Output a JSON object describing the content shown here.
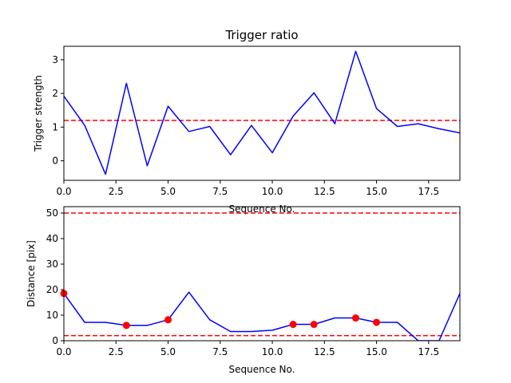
{
  "figure": {
    "background": "#ffffff"
  },
  "colors": {
    "series": "#0000ff",
    "threshold": "#ff0000",
    "marker": "#ff0000",
    "axes": "#000000"
  },
  "chart_data": [
    {
      "type": "line",
      "title": "Trigger ratio",
      "xlabel": "Sequence No.",
      "ylabel": "Trigger strength",
      "xlim": [
        0,
        19
      ],
      "ylim": [
        -0.58,
        3.4
      ],
      "xticks": [
        0,
        2.5,
        5,
        7.5,
        10,
        12.5,
        15,
        17.5
      ],
      "xtick_labels": [
        "0.0",
        "2.5",
        "5.0",
        "7.5",
        "10.0",
        "12.5",
        "15.0",
        "17.5"
      ],
      "yticks": [
        0,
        1,
        2,
        3
      ],
      "ytick_labels": [
        "0",
        "1",
        "2",
        "3"
      ],
      "grid": false,
      "series": [
        {
          "name": "Trigger strength",
          "x": [
            0,
            1,
            2,
            3,
            4,
            5,
            6,
            7,
            8,
            9,
            10,
            11,
            12,
            13,
            14,
            15,
            16,
            17,
            18,
            19
          ],
          "values": [
            1.92,
            1.05,
            -0.4,
            2.3,
            -0.15,
            1.62,
            0.87,
            1.02,
            0.18,
            1.05,
            0.24,
            1.33,
            2.02,
            1.1,
            3.25,
            1.55,
            1.02,
            1.1,
            0.95,
            0.83
          ]
        }
      ],
      "hlines": [
        {
          "y": 1.2,
          "style": "dashed"
        }
      ]
    },
    {
      "type": "line",
      "title": "",
      "xlabel": "Sequence No.",
      "ylabel": "Distance [pix]",
      "xlim": [
        0,
        19
      ],
      "ylim": [
        0,
        52.5
      ],
      "xticks": [
        0,
        2.5,
        5,
        7.5,
        10,
        12.5,
        15,
        17.5
      ],
      "xtick_labels": [
        "0.0",
        "2.5",
        "5.0",
        "7.5",
        "10.0",
        "12.5",
        "15.0",
        "17.5"
      ],
      "yticks": [
        0,
        10,
        20,
        30,
        40,
        50
      ],
      "ytick_labels": [
        "0",
        "10",
        "20",
        "30",
        "40",
        "50"
      ],
      "grid": false,
      "series": [
        {
          "name": "Distance",
          "x": [
            0,
            1,
            2,
            3,
            4,
            5,
            6,
            7,
            8,
            9,
            10,
            11,
            12,
            13,
            14,
            15,
            16,
            17,
            18,
            19
          ],
          "values": [
            18.5,
            7.2,
            7.2,
            6.0,
            6.0,
            8.2,
            19.0,
            8.2,
            3.6,
            3.6,
            4.1,
            6.4,
            6.4,
            8.9,
            8.9,
            7.2,
            7.2,
            0.0,
            0.0,
            18.5
          ]
        }
      ],
      "markers": {
        "x": [
          0,
          3,
          5,
          11,
          12,
          14,
          15
        ],
        "values": [
          18.5,
          6.0,
          8.2,
          6.4,
          6.4,
          8.9,
          7.2
        ]
      },
      "hlines": [
        {
          "y": 50,
          "style": "dashed"
        },
        {
          "y": 2,
          "style": "dashed"
        }
      ]
    }
  ]
}
